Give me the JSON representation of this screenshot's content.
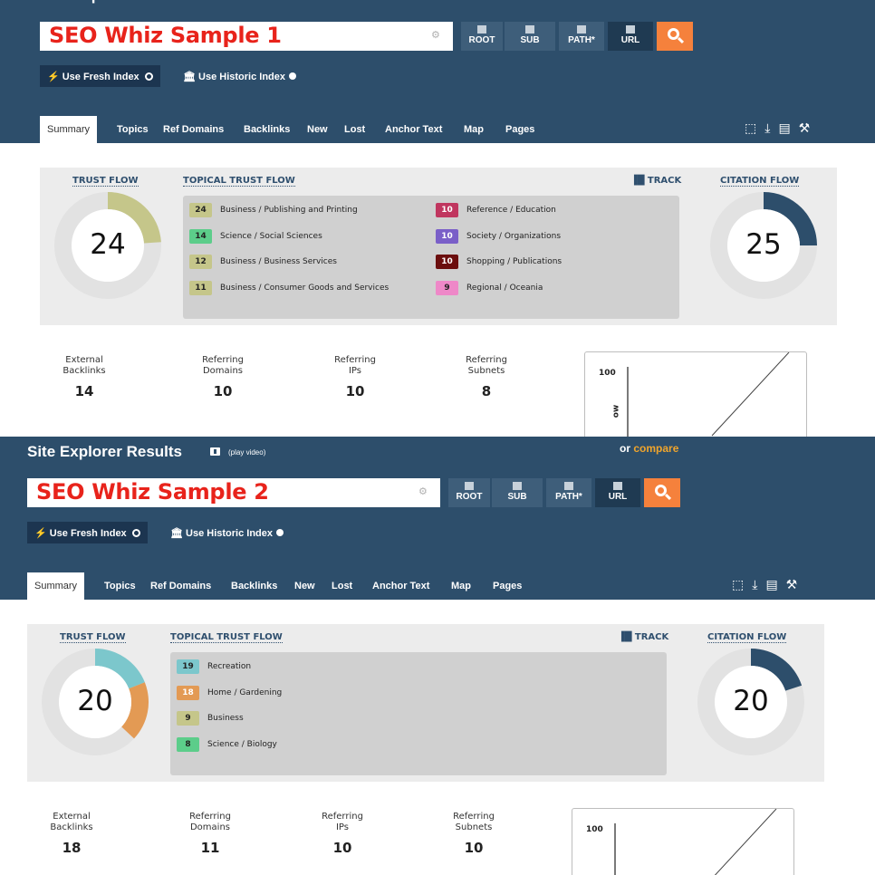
{
  "app": {
    "title": "Site Explorer Results",
    "play_video": "(play video)",
    "or_text": "or",
    "compare_text": "compare",
    "fresh_index": "Use Fresh Index",
    "historic_index": "Use Historic Index",
    "scope_buttons": [
      "ROOT",
      "SUB",
      "PATH*",
      "URL"
    ],
    "tabs": [
      "Summary",
      "Topics",
      "Ref Domains",
      "Backlinks",
      "New",
      "Lost",
      "Anchor Text",
      "Map",
      "Pages"
    ],
    "labels": {
      "trust_flow": "TRUST FLOW",
      "topical_trust_flow": "TOPICAL TRUST FLOW",
      "track": "TRACK",
      "citation_flow": "CITATION FLOW"
    },
    "stat_labels": {
      "external_backlinks": [
        "External",
        "Backlinks"
      ],
      "referring_domains": [
        "Referring",
        "Domains"
      ],
      "referring_ips": [
        "Referring",
        "IPs"
      ],
      "referring_subnets": [
        "Referring",
        "Subnets"
      ]
    },
    "chart_tick": "100",
    "chart_axis_fragment": "ow",
    "colors": {
      "header": "#2d4e6b",
      "accent_orange": "#f5813c",
      "compare": "#f0a52c",
      "track_dark": "#1f3a52"
    }
  },
  "samples": [
    {
      "search_value": "SEO Whiz Sample 1",
      "trust_flow": 24,
      "citation_flow": 25,
      "topics": [
        {
          "value": "24",
          "label": "Business / Publishing and Printing",
          "color": "#c5c68a"
        },
        {
          "value": "14",
          "label": "Science / Social Sciences",
          "color": "#5ccd8a"
        },
        {
          "value": "12",
          "label": "Business / Business Services",
          "color": "#c5c68a"
        },
        {
          "value": "11",
          "label": "Business / Consumer Goods and Services",
          "color": "#c5c68a"
        },
        {
          "value": "10",
          "label": "Reference / Education",
          "color": "#c0365f"
        },
        {
          "value": "10",
          "label": "Society / Organizations",
          "color": "#7a5fc8"
        },
        {
          "value": "10",
          "label": "Shopping / Publications",
          "color": "#6b0e0e"
        },
        {
          "value": "9",
          "label": "Regional / Oceania",
          "color": "#ee88c8"
        }
      ],
      "stats": {
        "external_backlinks": "14",
        "referring_domains": "10",
        "referring_ips": "10",
        "referring_subnets": "8"
      }
    },
    {
      "search_value": "SEO Whiz Sample 2",
      "trust_flow": 20,
      "citation_flow": 20,
      "topics": [
        {
          "value": "19",
          "label": "Recreation",
          "color": "#7cc7cc"
        },
        {
          "value": "18",
          "label": "Home / Gardening",
          "color": "#e39a54"
        },
        {
          "value": "9",
          "label": "Business",
          "color": "#c5c68a"
        },
        {
          "value": "8",
          "label": "Science / Biology",
          "color": "#5ccd8a"
        }
      ],
      "stats": {
        "external_backlinks": "18",
        "referring_domains": "11",
        "referring_ips": "10",
        "referring_subnets": "10"
      }
    }
  ]
}
